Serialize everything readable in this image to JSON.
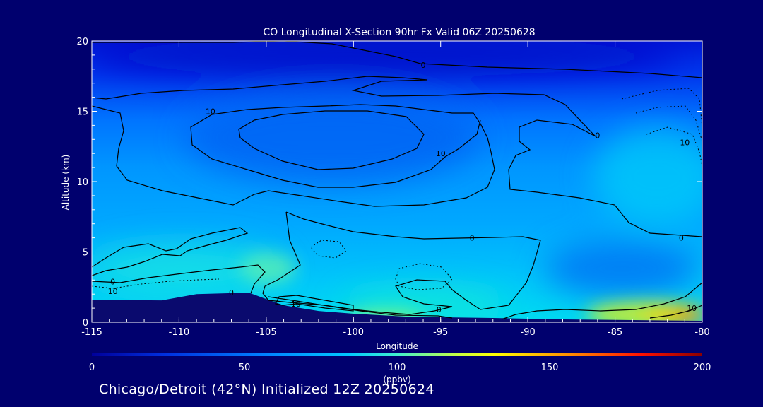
{
  "chart_data": {
    "type": "heatmap",
    "title": "CO Longitudinal X-Section 90hr  Fx Valid 06Z 20250628",
    "xlabel": "Longitude",
    "ylabel": "Altitude (km)",
    "xlim": [
      -115,
      -80
    ],
    "ylim": [
      0,
      20
    ],
    "xticks": [
      -115,
      -110,
      -105,
      -100,
      -95,
      -90,
      -85,
      -80
    ],
    "xtick_labels": [
      "-115",
      "-110",
      "-105",
      "-100",
      "-95",
      "-90",
      "-85",
      "-80"
    ],
    "yticks": [
      0,
      5,
      10,
      15,
      20
    ],
    "ytick_labels": [
      "0",
      "5",
      "10",
      "15",
      "20"
    ],
    "colorbar": {
      "min": 0,
      "max": 200,
      "ticks": [
        0,
        50,
        100,
        150,
        200
      ],
      "tick_labels": [
        "0",
        "50",
        "100",
        "150",
        "200"
      ],
      "unit": "(ppbv)",
      "colors": [
        "#00009a",
        "#0040f0",
        "#0090ff",
        "#00d8f8",
        "#70ff90",
        "#ffff00",
        "#ff9000",
        "#ff0000",
        "#8a0000"
      ]
    },
    "grid": false,
    "terrain_color": "#0a0a6e",
    "terrain": {
      "x": [
        -115,
        -111,
        -109,
        -106,
        -104,
        -102,
        -100,
        -97,
        -95,
        -92,
        -88,
        -84,
        -80
      ],
      "y": [
        1.6,
        1.55,
        2.0,
        2.1,
        1.2,
        0.8,
        0.6,
        0.4,
        0.35,
        0.3,
        0.2,
        0.15,
        0.1
      ]
    },
    "contour_labels": [
      {
        "text": "0",
        "x": -96,
        "y": 18.3
      },
      {
        "text": "10",
        "x": -108.2,
        "y": 15.0
      },
      {
        "text": "10",
        "x": -95,
        "y": 12.0
      },
      {
        "text": "0",
        "x": -86,
        "y": 13.3
      },
      {
        "text": "10",
        "x": -81,
        "y": 12.8
      },
      {
        "text": "0",
        "x": -93.2,
        "y": 6.0
      },
      {
        "text": "0",
        "x": -81.2,
        "y": 6.0
      },
      {
        "text": "0",
        "x": -113.8,
        "y": 2.9
      },
      {
        "text": "10",
        "x": -113.8,
        "y": 2.2
      },
      {
        "text": "0",
        "x": -107,
        "y": 2.1
      },
      {
        "text": "10",
        "x": -103.3,
        "y": 1.3
      },
      {
        "text": "0",
        "x": -95.1,
        "y": 0.9
      },
      {
        "text": "10",
        "x": -80.6,
        "y": 1.0
      }
    ]
  },
  "footer": "Chicago/Detroit (42°N) Initialized 12Z 20250624"
}
